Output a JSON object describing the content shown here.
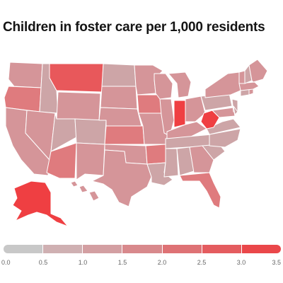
{
  "title": "Children in foster care per 1,000 residents",
  "map": {
    "colors": {
      "none": "#c4c4c4",
      "low": "#cda5a7",
      "mid": "#d59599",
      "mid_high": "#df7b7e",
      "high": "#e8585b",
      "top": "#ef3f42"
    }
  },
  "legend": {
    "ticks": [
      "0.0",
      "0.5",
      "1.0",
      "1.5",
      "2.0",
      "2.5",
      "3.0",
      "3.5"
    ],
    "segments": [
      "#c8c8c8",
      "#cfb0b2",
      "#d39fa2",
      "#d8898c",
      "#de7275",
      "#e45c5f",
      "#ea474a"
    ]
  }
}
